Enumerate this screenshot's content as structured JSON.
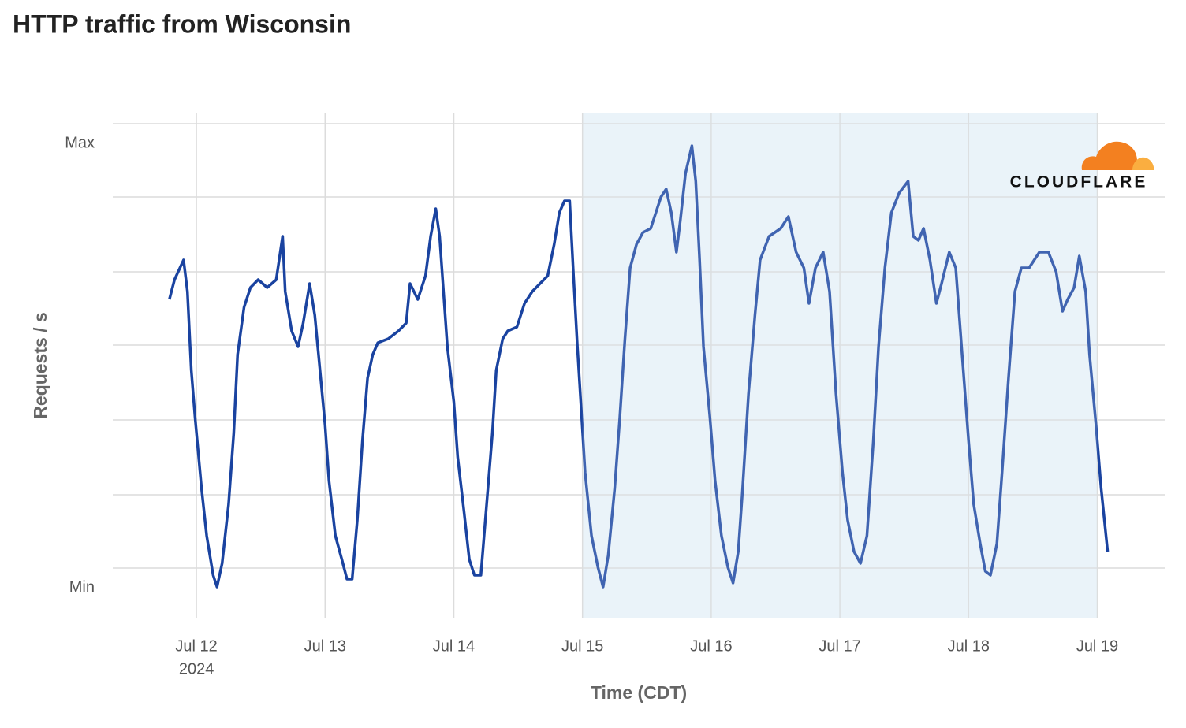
{
  "chart_data": {
    "type": "line",
    "title": "HTTP traffic from Wisconsin",
    "ylabel": "Requests / s",
    "xlabel": "Time (CDT)",
    "logo_text": "CLOUDFLARE",
    "xticks": [
      {
        "value": 0,
        "label": "Jul 12"
      },
      {
        "value": 1,
        "label": "Jul 13"
      },
      {
        "value": 2,
        "label": "Jul 14"
      },
      {
        "value": 3,
        "label": "Jul 15"
      },
      {
        "value": 4,
        "label": "Jul 16"
      },
      {
        "value": 5,
        "label": "Jul 17"
      },
      {
        "value": 6,
        "label": "Jul 18"
      },
      {
        "value": 7,
        "label": "Jul 19"
      }
    ],
    "xtick_year": "2024",
    "xlim": [
      -0.65,
      7.53
    ],
    "ylim": [
      -38,
      602
    ],
    "yticks": [
      {
        "value": 0,
        "label": "Min"
      },
      {
        "value": 564,
        "label": "Max"
      }
    ],
    "ygrid": [
      25,
      118,
      213,
      308,
      401,
      496,
      589
    ],
    "grid": true,
    "highlight": [
      3,
      7
    ],
    "series": [
      {
        "color": "#1a43a0",
        "x": [
          -0.21,
          -0.17,
          -0.1,
          -0.07,
          -0.04,
          -0.01,
          0.04,
          0.08,
          0.13,
          0.16,
          0.2,
          0.25,
          0.29,
          0.32,
          0.37,
          0.42,
          0.48,
          0.55,
          0.62,
          0.67,
          0.69,
          0.74,
          0.79,
          0.83,
          0.88,
          0.92,
          0.96,
          1.0,
          1.03,
          1.08,
          1.13,
          1.17,
          1.21,
          1.25,
          1.29,
          1.33,
          1.37,
          1.41,
          1.49,
          1.57,
          1.63,
          1.66,
          1.72,
          1.78,
          1.82,
          1.86,
          1.89,
          1.92,
          1.95,
          2.0,
          2.03,
          2.08,
          2.12,
          2.16,
          2.21,
          2.25,
          2.3,
          2.33,
          2.38,
          2.42,
          2.49,
          2.55,
          2.61,
          2.67,
          2.73,
          2.78,
          2.82,
          2.86,
          2.9,
          2.93,
          2.96,
          2.99,
          3.02,
          3.07,
          3.12,
          3.16,
          3.2,
          3.25,
          3.29,
          3.33,
          3.37,
          3.42,
          3.47,
          3.53,
          3.61,
          3.65,
          3.69,
          3.73,
          3.76,
          3.8,
          3.85,
          3.88,
          3.91,
          3.94,
          3.99,
          4.03,
          4.08,
          4.13,
          4.17,
          4.21,
          4.24,
          4.29,
          4.34,
          4.38,
          4.45,
          4.54,
          4.6,
          4.66,
          4.72,
          4.76,
          4.81,
          4.87,
          4.92,
          4.97,
          5.02,
          5.06,
          5.11,
          5.16,
          5.21,
          5.26,
          5.3,
          5.35,
          5.4,
          5.46,
          5.53,
          5.57,
          5.61,
          5.65,
          5.7,
          5.75,
          5.79,
          5.85,
          5.9,
          5.95,
          6.0,
          6.04,
          6.09,
          6.13,
          6.17,
          6.22,
          6.26,
          6.31,
          6.36,
          6.41,
          6.47,
          6.55,
          6.62,
          6.68,
          6.73,
          6.77,
          6.82,
          6.86,
          6.91,
          6.94,
          6.99,
          7.03,
          7.08
        ],
        "values": [
          366,
          391,
          416,
          376,
          276,
          216,
          126,
          66,
          16,
          1,
          31,
          106,
          196,
          296,
          356,
          381,
          391,
          381,
          391,
          446,
          376,
          326,
          306,
          336,
          386,
          346,
          276,
          206,
          136,
          66,
          36,
          11,
          11,
          86,
          186,
          266,
          296,
          311,
          316,
          326,
          336,
          386,
          366,
          396,
          446,
          481,
          446,
          376,
          306,
          236,
          166,
          96,
          36,
          16,
          16,
          96,
          196,
          276,
          316,
          326,
          331,
          361,
          376,
          386,
          396,
          436,
          476,
          491,
          491,
          396,
          306,
          226,
          146,
          66,
          26,
          1,
          41,
          126,
          216,
          316,
          406,
          436,
          451,
          456,
          496,
          506,
          476,
          426,
          466,
          526,
          561,
          516,
          416,
          306,
          216,
          136,
          66,
          26,
          6,
          46,
          116,
          246,
          346,
          416,
          446,
          456,
          471,
          426,
          406,
          361,
          406,
          426,
          376,
          246,
          146,
          86,
          46,
          31,
          66,
          186,
          306,
          406,
          476,
          501,
          516,
          446,
          441,
          456,
          416,
          361,
          386,
          426,
          406,
          296,
          186,
          106,
          56,
          21,
          16,
          56,
          146,
          266,
          376,
          406,
          406,
          426,
          426,
          401,
          351,
          366,
          381,
          421,
          376,
          296,
          206,
          126,
          46
        ]
      }
    ]
  }
}
